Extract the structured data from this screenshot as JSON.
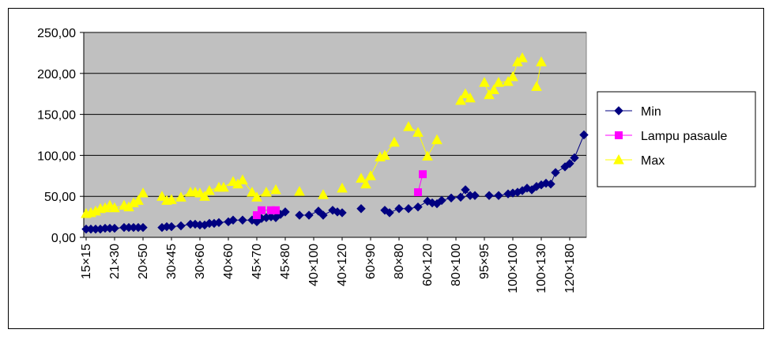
{
  "chart_data": {
    "type": "line",
    "title": "",
    "xlabel": "",
    "ylabel": "",
    "ylim": [
      0,
      250
    ],
    "y_ticks": [
      "0,00",
      "50,00",
      "100,00",
      "150,00",
      "200,00",
      "250,00"
    ],
    "y_tick_values": [
      0,
      50,
      100,
      150,
      200,
      250
    ],
    "x_ticks": [
      "15×15",
      "21×30",
      "20×50",
      "30×45",
      "30×60",
      "40×60",
      "45×70",
      "45×80",
      "40×100",
      "40×120",
      "60×90",
      "80×80",
      "60×120",
      "80×100",
      "95×95",
      "100×100",
      "100×130",
      "120×180"
    ],
    "x_count": 100,
    "x_tick_step": 6,
    "grid": "horizontal",
    "plot_background": "#c0c0c0",
    "legend_position": "right",
    "series": [
      {
        "name": "Min",
        "color": "#000080",
        "marker": "diamond",
        "points": [
          [
            0,
            10
          ],
          [
            1,
            10
          ],
          [
            2,
            10
          ],
          [
            3,
            10
          ],
          [
            4,
            11
          ],
          [
            5,
            11
          ],
          [
            6,
            11
          ],
          [
            8,
            12
          ],
          [
            9,
            12
          ],
          [
            10,
            12
          ],
          [
            11,
            12
          ],
          [
            12,
            12
          ],
          [
            16,
            12
          ],
          [
            17,
            13
          ],
          [
            18,
            13
          ],
          [
            20,
            14
          ],
          [
            22,
            16
          ],
          [
            23,
            16
          ],
          [
            24,
            15
          ],
          [
            25,
            15
          ],
          [
            26,
            17
          ],
          [
            27,
            17
          ],
          [
            28,
            18
          ],
          [
            30,
            19
          ],
          [
            31,
            21
          ],
          [
            33,
            21
          ],
          [
            35,
            21
          ],
          [
            36,
            19
          ],
          [
            37,
            23
          ],
          [
            38,
            24
          ],
          [
            39,
            25
          ],
          [
            40,
            24
          ],
          [
            41,
            28
          ],
          [
            42,
            31
          ],
          [
            45,
            27
          ],
          [
            47,
            27
          ],
          [
            49,
            32
          ],
          [
            50,
            27
          ],
          [
            52,
            33
          ],
          [
            53,
            31
          ],
          [
            54,
            30
          ],
          [
            58,
            35
          ],
          [
            63,
            33
          ],
          [
            64,
            30
          ],
          [
            66,
            35
          ],
          [
            68,
            35
          ],
          [
            70,
            37
          ],
          [
            72,
            44
          ],
          [
            73,
            42
          ],
          [
            74,
            41
          ],
          [
            75,
            45
          ],
          [
            77,
            48
          ],
          [
            79,
            49
          ],
          [
            80,
            58
          ],
          [
            81,
            51
          ],
          [
            82,
            51
          ],
          [
            85,
            51
          ],
          [
            87,
            51
          ],
          [
            89,
            53
          ],
          [
            90,
            54
          ],
          [
            91,
            55
          ],
          [
            92,
            57
          ],
          [
            93,
            60
          ],
          [
            94,
            58
          ],
          [
            95,
            62
          ],
          [
            96,
            64
          ],
          [
            97,
            66
          ],
          [
            98,
            65
          ],
          [
            99,
            79
          ],
          [
            101,
            86
          ],
          [
            102,
            90
          ],
          [
            103,
            97
          ],
          [
            105,
            125
          ]
        ]
      },
      {
        "name": "Lampu pasaule",
        "color": "#ff00ff",
        "marker": "square",
        "points": [
          [
            36,
            27
          ],
          [
            37,
            33
          ],
          [
            39,
            33
          ],
          [
            40,
            33
          ],
          [
            70,
            55
          ],
          [
            71,
            77
          ]
        ]
      },
      {
        "name": "Max",
        "color": "#ffff00",
        "marker": "triangle",
        "points": [
          [
            0,
            29
          ],
          [
            1,
            30
          ],
          [
            2,
            32
          ],
          [
            3,
            35
          ],
          [
            4,
            36
          ],
          [
            5,
            39
          ],
          [
            6,
            36
          ],
          [
            8,
            39
          ],
          [
            9,
            37
          ],
          [
            10,
            42
          ],
          [
            11,
            45
          ],
          [
            12,
            54
          ],
          [
            16,
            50
          ],
          [
            17,
            45
          ],
          [
            18,
            46
          ],
          [
            20,
            49
          ],
          [
            22,
            55
          ],
          [
            23,
            55
          ],
          [
            24,
            54
          ],
          [
            25,
            50
          ],
          [
            26,
            57
          ],
          [
            28,
            61
          ],
          [
            29,
            61
          ],
          [
            31,
            68
          ],
          [
            32,
            65
          ],
          [
            33,
            70
          ],
          [
            35,
            55
          ],
          [
            36,
            49
          ],
          [
            38,
            55
          ],
          [
            40,
            58
          ],
          [
            45,
            56
          ],
          [
            50,
            52
          ],
          [
            54,
            60
          ],
          [
            58,
            72
          ],
          [
            59,
            65
          ],
          [
            60,
            75
          ],
          [
            62,
            98
          ],
          [
            63,
            100
          ],
          [
            65,
            116
          ],
          [
            68,
            135
          ],
          [
            70,
            128
          ],
          [
            72,
            99
          ],
          [
            74,
            119
          ],
          [
            79,
            167
          ],
          [
            80,
            175
          ],
          [
            81,
            170
          ],
          [
            84,
            189
          ],
          [
            85,
            174
          ],
          [
            86,
            180
          ],
          [
            87,
            189
          ],
          [
            89,
            190
          ],
          [
            90,
            196
          ],
          [
            91,
            214
          ],
          [
            92,
            219
          ],
          [
            95,
            184
          ],
          [
            96,
            214
          ]
        ]
      }
    ]
  }
}
